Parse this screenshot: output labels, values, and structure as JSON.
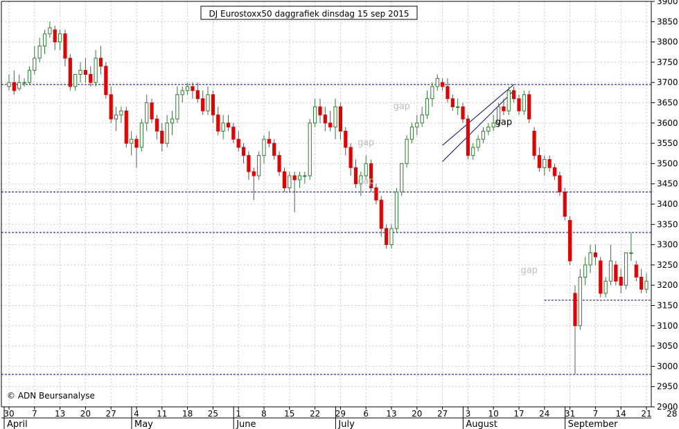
{
  "chart_data": {
    "type": "candlestick",
    "title": "DJ Eurostoxx50 daggrafiek dinsdag 15 sep 2015",
    "watermark": "© ADN Beursanalyse",
    "ylim": [
      2900,
      3900
    ],
    "yticks": [
      2900,
      2950,
      3000,
      3050,
      3100,
      3150,
      3200,
      3250,
      3300,
      3350,
      3400,
      3450,
      3500,
      3550,
      3600,
      3650,
      3700,
      3750,
      3800,
      3850,
      3900
    ],
    "day_labels": [
      "30",
      "7",
      "13",
      "20",
      "27",
      "4",
      "11",
      "18",
      "25",
      "1",
      "8",
      "15",
      "22",
      "29",
      "6",
      "13",
      "20",
      "27",
      "3",
      "10",
      "17",
      "24",
      "31",
      "7",
      "14",
      "21",
      "28"
    ],
    "months": [
      {
        "label": "April",
        "tick_index": 0
      },
      {
        "label": "May",
        "tick_index": 5
      },
      {
        "label": "June",
        "tick_index": 9
      },
      {
        "label": "July",
        "tick_index": 13
      },
      {
        "label": "August",
        "tick_index": 18
      },
      {
        "label": "September",
        "tick_index": 22
      }
    ],
    "support_levels": [
      3695,
      3430,
      3330,
      3163,
      2980
    ],
    "gap_labels": [
      {
        "text": "gap",
        "day": 77,
        "y": 3635,
        "color": "#bdbdbd"
      },
      {
        "text": "gap",
        "day": 70,
        "y": 3545,
        "color": "#bdbdbd"
      },
      {
        "text": "gap",
        "day": 70,
        "y": 3450,
        "color": "#bdbdbd"
      },
      {
        "text": "gap",
        "day": 97,
        "y": 3595,
        "color": "#000000"
      },
      {
        "text": "gap",
        "day": 102,
        "y": 3230,
        "color": "#bdbdbd"
      }
    ],
    "trend_channel": [
      {
        "from": [
          85,
          3505
        ],
        "to": [
          99,
          3680
        ]
      },
      {
        "from": [
          85,
          3545
        ],
        "to": [
          99,
          3695
        ]
      }
    ],
    "ohlc": [
      [
        3690,
        3720,
        3680,
        3700
      ],
      [
        3700,
        3730,
        3670,
        3680
      ],
      [
        3685,
        3720,
        3680,
        3700
      ],
      [
        3700,
        3710,
        3690,
        3700
      ],
      [
        3700,
        3740,
        3695,
        3730
      ],
      [
        3730,
        3790,
        3720,
        3760
      ],
      [
        3760,
        3810,
        3750,
        3790
      ],
      [
        3790,
        3830,
        3770,
        3820
      ],
      [
        3820,
        3850,
        3810,
        3835
      ],
      [
        3830,
        3840,
        3780,
        3800
      ],
      [
        3800,
        3830,
        3780,
        3820
      ],
      [
        3820,
        3830,
        3740,
        3760
      ],
      [
        3760,
        3770,
        3680,
        3690
      ],
      [
        3690,
        3720,
        3680,
        3720
      ],
      [
        3720,
        3750,
        3700,
        3730
      ],
      [
        3730,
        3760,
        3700,
        3720
      ],
      [
        3720,
        3740,
        3690,
        3700
      ],
      [
        3700,
        3780,
        3690,
        3760
      ],
      [
        3760,
        3790,
        3720,
        3740
      ],
      [
        3740,
        3750,
        3660,
        3670
      ],
      [
        3670,
        3690,
        3600,
        3610
      ],
      [
        3610,
        3640,
        3580,
        3620
      ],
      [
        3620,
        3640,
        3600,
        3630
      ],
      [
        3630,
        3640,
        3540,
        3550
      ],
      [
        3550,
        3580,
        3520,
        3560
      ],
      [
        3560,
        3570,
        3490,
        3540
      ],
      [
        3540,
        3610,
        3530,
        3600
      ],
      [
        3600,
        3670,
        3580,
        3650
      ],
      [
        3650,
        3660,
        3600,
        3610
      ],
      [
        3610,
        3620,
        3560,
        3580
      ],
      [
        3580,
        3600,
        3530,
        3550
      ],
      [
        3550,
        3620,
        3540,
        3600
      ],
      [
        3600,
        3630,
        3570,
        3610
      ],
      [
        3610,
        3690,
        3600,
        3670
      ],
      [
        3670,
        3690,
        3650,
        3680
      ],
      [
        3680,
        3700,
        3670,
        3690
      ],
      [
        3690,
        3700,
        3660,
        3680
      ],
      [
        3680,
        3700,
        3650,
        3660
      ],
      [
        3660,
        3680,
        3620,
        3630
      ],
      [
        3630,
        3690,
        3620,
        3670
      ],
      [
        3670,
        3680,
        3600,
        3620
      ],
      [
        3620,
        3640,
        3570,
        3580
      ],
      [
        3580,
        3620,
        3560,
        3600
      ],
      [
        3600,
        3620,
        3580,
        3590
      ],
      [
        3590,
        3600,
        3550,
        3560
      ],
      [
        3560,
        3580,
        3530,
        3540
      ],
      [
        3540,
        3550,
        3500,
        3520
      ],
      [
        3520,
        3530,
        3460,
        3480
      ],
      [
        3480,
        3490,
        3410,
        3470
      ],
      [
        3470,
        3530,
        3460,
        3520
      ],
      [
        3520,
        3570,
        3500,
        3560
      ],
      [
        3560,
        3580,
        3540,
        3550
      ],
      [
        3550,
        3560,
        3510,
        3520
      ],
      [
        3520,
        3530,
        3470,
        3480
      ],
      [
        3480,
        3490,
        3430,
        3440
      ],
      [
        3440,
        3480,
        3430,
        3470
      ],
      [
        3470,
        3480,
        3380,
        3460
      ],
      [
        3460,
        3480,
        3440,
        3470
      ],
      [
        3470,
        3480,
        3450,
        3470
      ],
      [
        3470,
        3610,
        3460,
        3600
      ],
      [
        3600,
        3660,
        3590,
        3640
      ],
      [
        3640,
        3660,
        3600,
        3620
      ],
      [
        3620,
        3640,
        3580,
        3600
      ],
      [
        3600,
        3630,
        3580,
        3590
      ],
      [
        3590,
        3660,
        3560,
        3640
      ],
      [
        3640,
        3650,
        3560,
        3580
      ],
      [
        3580,
        3590,
        3520,
        3540
      ],
      [
        3540,
        3550,
        3470,
        3490
      ],
      [
        3490,
        3510,
        3440,
        3450
      ],
      [
        3450,
        3480,
        3420,
        3470
      ],
      [
        3470,
        3520,
        3460,
        3500
      ],
      [
        3500,
        3510,
        3430,
        3440
      ],
      [
        3440,
        3450,
        3400,
        3410
      ],
      [
        3410,
        3420,
        3320,
        3340
      ],
      [
        3340,
        3350,
        3290,
        3300
      ],
      [
        3300,
        3350,
        3290,
        3340
      ],
      [
        3340,
        3440,
        3330,
        3430
      ],
      [
        3430,
        3500,
        3420,
        3500
      ],
      [
        3500,
        3570,
        3490,
        3560
      ],
      [
        3560,
        3600,
        3550,
        3590
      ],
      [
        3590,
        3620,
        3570,
        3600
      ],
      [
        3600,
        3640,
        3590,
        3620
      ],
      [
        3620,
        3680,
        3610,
        3660
      ],
      [
        3660,
        3700,
        3640,
        3690
      ],
      [
        3690,
        3720,
        3680,
        3710
      ],
      [
        3700,
        3710,
        3680,
        3690
      ],
      [
        3690,
        3710,
        3650,
        3660
      ],
      [
        3660,
        3670,
        3630,
        3640
      ],
      [
        3640,
        3660,
        3620,
        3640
      ],
      [
        3640,
        3650,
        3600,
        3610
      ],
      [
        3610,
        3620,
        3510,
        3520
      ],
      [
        3520,
        3550,
        3510,
        3540
      ],
      [
        3540,
        3570,
        3530,
        3560
      ],
      [
        3560,
        3590,
        3550,
        3580
      ],
      [
        3580,
        3600,
        3570,
        3590
      ],
      [
        3590,
        3620,
        3580,
        3600
      ],
      [
        3600,
        3650,
        3590,
        3640
      ],
      [
        3640,
        3660,
        3620,
        3630
      ],
      [
        3630,
        3690,
        3620,
        3680
      ],
      [
        3680,
        3690,
        3650,
        3660
      ],
      [
        3660,
        3670,
        3620,
        3630
      ],
      [
        3630,
        3680,
        3620,
        3670
      ],
      [
        3670,
        3680,
        3600,
        3610
      ],
      [
        3580,
        3590,
        3510,
        3520
      ],
      [
        3520,
        3540,
        3480,
        3490
      ],
      [
        3490,
        3520,
        3470,
        3510
      ],
      [
        3510,
        3520,
        3480,
        3490
      ],
      [
        3490,
        3500,
        3460,
        3470
      ],
      [
        3470,
        3480,
        3420,
        3430
      ],
      [
        3430,
        3440,
        3360,
        3370
      ],
      [
        3360,
        3370,
        3250,
        3260
      ],
      [
        3180,
        3200,
        2980,
        3100
      ],
      [
        3100,
        3240,
        3090,
        3220
      ],
      [
        3220,
        3270,
        3200,
        3250
      ],
      [
        3250,
        3300,
        3230,
        3280
      ],
      [
        3280,
        3300,
        3250,
        3270
      ],
      [
        3260,
        3270,
        3170,
        3180
      ],
      [
        3180,
        3220,
        3170,
        3210
      ],
      [
        3210,
        3300,
        3200,
        3260
      ],
      [
        3250,
        3260,
        3200,
        3210
      ],
      [
        3220,
        3240,
        3180,
        3200
      ],
      [
        3200,
        3270,
        3190,
        3280
      ],
      [
        3280,
        3330,
        3260,
        3280
      ],
      [
        3250,
        3260,
        3210,
        3220
      ],
      [
        3220,
        3240,
        3180,
        3190
      ],
      [
        3190,
        3230,
        3180,
        3210
      ]
    ]
  }
}
